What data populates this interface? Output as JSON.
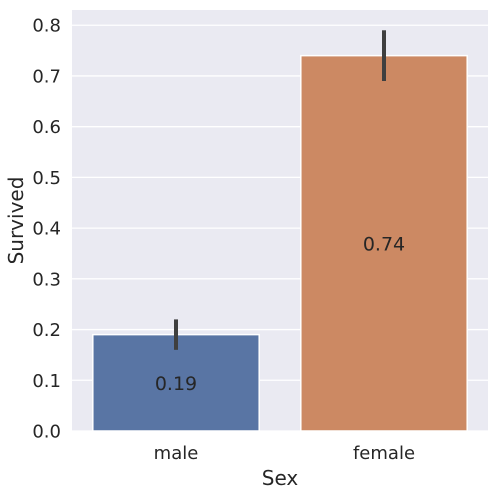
{
  "chart_data": {
    "type": "bar",
    "categories": [
      "male",
      "female"
    ],
    "values": [
      0.19,
      0.74
    ],
    "data_labels": [
      "0.19",
      "0.74"
    ],
    "ci": [
      [
        0.16,
        0.22
      ],
      [
        0.69,
        0.79
      ]
    ],
    "xlabel": "Sex",
    "ylabel": "Survived",
    "ylim": [
      0,
      0.83
    ],
    "yticks": [
      0.0,
      0.1,
      0.2,
      0.3,
      0.4,
      0.5,
      0.6,
      0.7,
      0.8
    ],
    "ytick_labels": [
      "0.0",
      "0.1",
      "0.2",
      "0.3",
      "0.4",
      "0.5",
      "0.6",
      "0.7",
      "0.8"
    ],
    "grid": true,
    "colors": {
      "background": "#EAEAF2",
      "grid": "#FFFFFF",
      "bars": [
        "#5975A4",
        "#CC8963"
      ],
      "error_bar": "#3F3F3F"
    }
  }
}
